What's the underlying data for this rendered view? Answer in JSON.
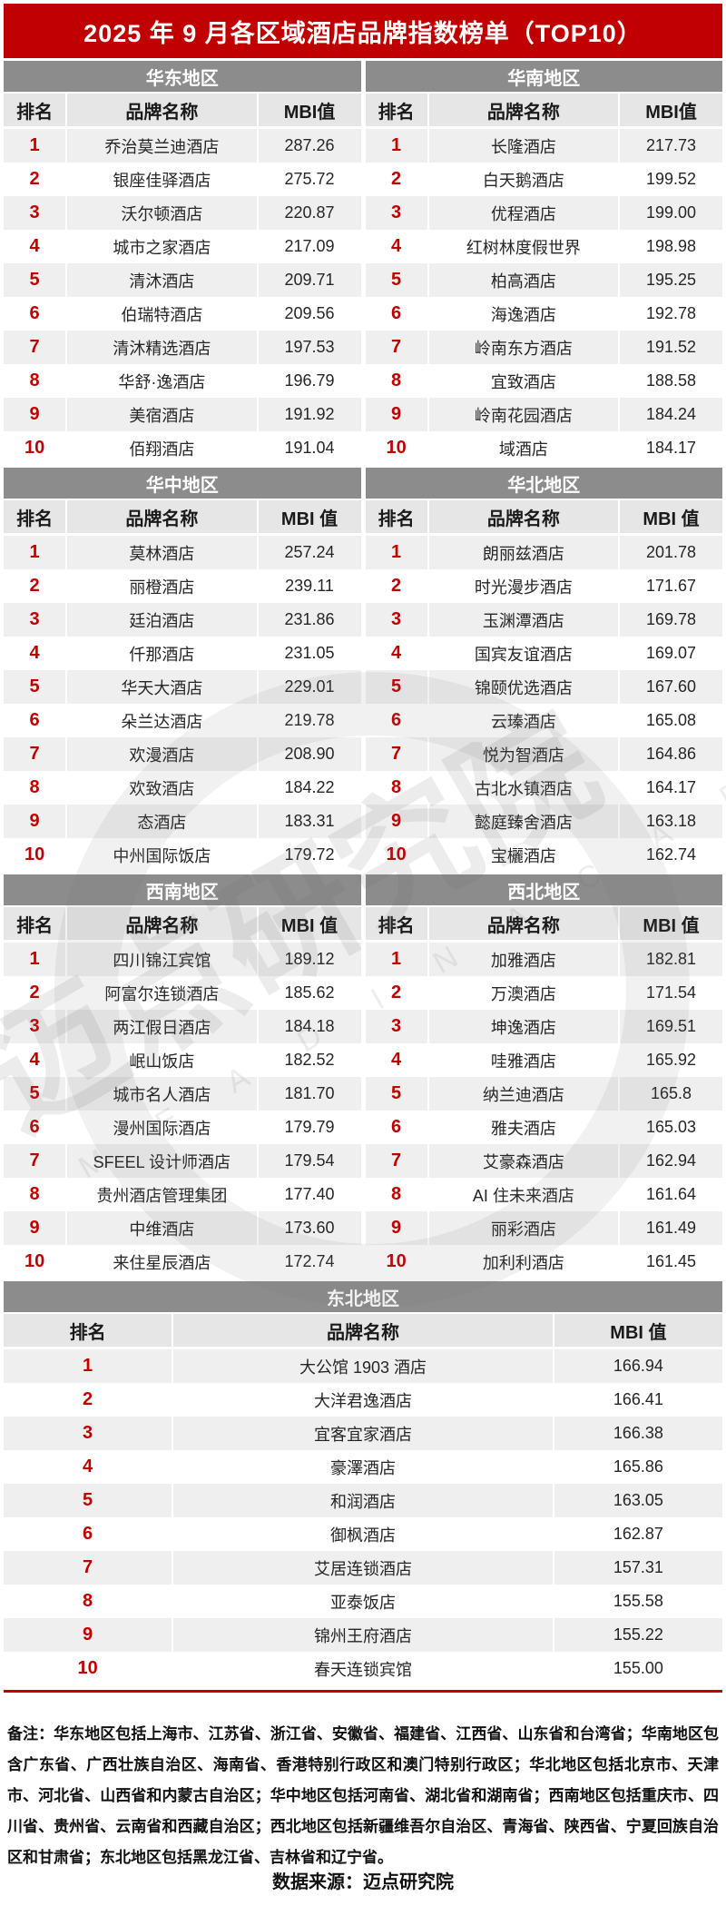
{
  "title": "2025 年 9 月各区域酒店品牌指数榜单（TOP10）",
  "chart_data": [
    {
      "type": "table",
      "region": "华东地区",
      "cols": [
        "排名",
        "品牌名称",
        "MBI值"
      ],
      "rows": [
        {
          "rank": "1",
          "brand": "乔治莫兰迪酒店",
          "mbi": "287.26"
        },
        {
          "rank": "2",
          "brand": "银座佳驿酒店",
          "mbi": "275.72"
        },
        {
          "rank": "3",
          "brand": "沃尔顿酒店",
          "mbi": "220.87"
        },
        {
          "rank": "4",
          "brand": "城市之家酒店",
          "mbi": "217.09"
        },
        {
          "rank": "5",
          "brand": "清沐酒店",
          "mbi": "209.71"
        },
        {
          "rank": "6",
          "brand": "伯瑞特酒店",
          "mbi": "209.56"
        },
        {
          "rank": "7",
          "brand": "清沐精选酒店",
          "mbi": "197.53"
        },
        {
          "rank": "8",
          "brand": "华舒·逸酒店",
          "mbi": "196.79"
        },
        {
          "rank": "9",
          "brand": "美宿酒店",
          "mbi": "191.92"
        },
        {
          "rank": "10",
          "brand": "佰翔酒店",
          "mbi": "191.04"
        }
      ]
    },
    {
      "type": "table",
      "region": "华南地区",
      "cols": [
        "排名",
        "品牌名称",
        "MBI值"
      ],
      "rows": [
        {
          "rank": "1",
          "brand": "长隆酒店",
          "mbi": "217.73"
        },
        {
          "rank": "2",
          "brand": "白天鹅酒店",
          "mbi": "199.52"
        },
        {
          "rank": "3",
          "brand": "优程酒店",
          "mbi": "199.00"
        },
        {
          "rank": "4",
          "brand": "红树林度假世界",
          "mbi": "198.98"
        },
        {
          "rank": "5",
          "brand": "柏高酒店",
          "mbi": "195.25"
        },
        {
          "rank": "6",
          "brand": "海逸酒店",
          "mbi": "192.78"
        },
        {
          "rank": "7",
          "brand": "岭南东方酒店",
          "mbi": "191.52"
        },
        {
          "rank": "8",
          "brand": "宜致酒店",
          "mbi": "188.58"
        },
        {
          "rank": "9",
          "brand": "岭南花园酒店",
          "mbi": "184.24"
        },
        {
          "rank": "10",
          "brand": "域酒店",
          "mbi": "184.17"
        }
      ]
    },
    {
      "type": "table",
      "region": "华中地区",
      "cols": [
        "排名",
        "品牌名称",
        "MBI 值"
      ],
      "rows": [
        {
          "rank": "1",
          "brand": "莫林酒店",
          "mbi": "257.24"
        },
        {
          "rank": "2",
          "brand": "丽橙酒店",
          "mbi": "239.11"
        },
        {
          "rank": "3",
          "brand": "廷泊酒店",
          "mbi": "231.86"
        },
        {
          "rank": "4",
          "brand": "仟那酒店",
          "mbi": "231.05"
        },
        {
          "rank": "5",
          "brand": "华天大酒店",
          "mbi": "229.01"
        },
        {
          "rank": "6",
          "brand": "朵兰达酒店",
          "mbi": "219.78"
        },
        {
          "rank": "7",
          "brand": "欢漫酒店",
          "mbi": "208.90"
        },
        {
          "rank": "8",
          "brand": "欢致酒店",
          "mbi": "184.22"
        },
        {
          "rank": "9",
          "brand": "态酒店",
          "mbi": "183.31"
        },
        {
          "rank": "10",
          "brand": "中州国际饭店",
          "mbi": "179.72"
        }
      ]
    },
    {
      "type": "table",
      "region": "华北地区",
      "cols": [
        "排名",
        "品牌名称",
        "MBI 值"
      ],
      "rows": [
        {
          "rank": "1",
          "brand": "朗丽兹酒店",
          "mbi": "201.78"
        },
        {
          "rank": "2",
          "brand": "时光漫步酒店",
          "mbi": "171.67"
        },
        {
          "rank": "3",
          "brand": "玉渊潭酒店",
          "mbi": "169.78"
        },
        {
          "rank": "4",
          "brand": "国宾友谊酒店",
          "mbi": "169.07"
        },
        {
          "rank": "5",
          "brand": "锦颐优选酒店",
          "mbi": "167.60"
        },
        {
          "rank": "6",
          "brand": "云瑧酒店",
          "mbi": "165.08"
        },
        {
          "rank": "7",
          "brand": "悦为智酒店",
          "mbi": "164.86"
        },
        {
          "rank": "8",
          "brand": "古北水镇酒店",
          "mbi": "164.17"
        },
        {
          "rank": "9",
          "brand": "懿庭臻舍酒店",
          "mbi": "163.18"
        },
        {
          "rank": "10",
          "brand": "宝欐酒店",
          "mbi": "162.74"
        }
      ]
    },
    {
      "type": "table",
      "region": "西南地区",
      "cols": [
        "排名",
        "品牌名称",
        "MBI 值"
      ],
      "rows": [
        {
          "rank": "1",
          "brand": "四川锦江宾馆",
          "mbi": "189.12"
        },
        {
          "rank": "2",
          "brand": "阿富尔连锁酒店",
          "mbi": "185.62"
        },
        {
          "rank": "3",
          "brand": "两江假日酒店",
          "mbi": "184.18"
        },
        {
          "rank": "4",
          "brand": "岷山饭店",
          "mbi": "182.52"
        },
        {
          "rank": "5",
          "brand": "城市名人酒店",
          "mbi": "181.70"
        },
        {
          "rank": "6",
          "brand": "漫州国际酒店",
          "mbi": "179.79"
        },
        {
          "rank": "7",
          "brand": "SFEEL 设计师酒店",
          "mbi": "179.54"
        },
        {
          "rank": "8",
          "brand": "贵州酒店管理集团",
          "mbi": "177.40"
        },
        {
          "rank": "9",
          "brand": "中维酒店",
          "mbi": "173.60"
        },
        {
          "rank": "10",
          "brand": "来住星辰酒店",
          "mbi": "172.74"
        }
      ]
    },
    {
      "type": "table",
      "region": "西北地区",
      "cols": [
        "排名",
        "品牌名称",
        "MBI 值"
      ],
      "rows": [
        {
          "rank": "1",
          "brand": "加雅酒店",
          "mbi": "182.81"
        },
        {
          "rank": "2",
          "brand": "万澳酒店",
          "mbi": "171.54"
        },
        {
          "rank": "3",
          "brand": "坤逸酒店",
          "mbi": "169.51"
        },
        {
          "rank": "4",
          "brand": "哇雅酒店",
          "mbi": "165.92"
        },
        {
          "rank": "5",
          "brand": "纳兰迪酒店",
          "mbi": "165.8"
        },
        {
          "rank": "6",
          "brand": "雅夫酒店",
          "mbi": "165.03"
        },
        {
          "rank": "7",
          "brand": "艾豪森酒店",
          "mbi": "162.94"
        },
        {
          "rank": "8",
          "brand": "AI 住未来酒店",
          "mbi": "161.64"
        },
        {
          "rank": "9",
          "brand": "丽彩酒店",
          "mbi": "161.49"
        },
        {
          "rank": "10",
          "brand": "加利利酒店",
          "mbi": "161.45"
        }
      ]
    },
    {
      "type": "table",
      "region": "东北地区",
      "cols": [
        "排名",
        "品牌名称",
        "MBI 值"
      ],
      "rows": [
        {
          "rank": "1",
          "brand": "大公馆 1903 酒店",
          "mbi": "166.94"
        },
        {
          "rank": "2",
          "brand": "大洋君逸酒店",
          "mbi": "166.41"
        },
        {
          "rank": "3",
          "brand": "宜客宜家酒店",
          "mbi": "166.38"
        },
        {
          "rank": "4",
          "brand": "豪澤酒店",
          "mbi": "165.86"
        },
        {
          "rank": "5",
          "brand": "和润酒店",
          "mbi": "163.05"
        },
        {
          "rank": "6",
          "brand": "御枫酒店",
          "mbi": "162.87"
        },
        {
          "rank": "7",
          "brand": "艾居连锁酒店",
          "mbi": "157.31"
        },
        {
          "rank": "8",
          "brand": "亚泰饭店",
          "mbi": "155.58"
        },
        {
          "rank": "9",
          "brand": "锦州王府酒店",
          "mbi": "155.22"
        },
        {
          "rank": "10",
          "brand": "春天连锁宾馆",
          "mbi": "155.00"
        }
      ]
    }
  ],
  "watermark": {
    "cn": "迈点研究院",
    "en": "M E A D I N  A C A D E M Y"
  },
  "footer": {
    "note": "备注：华东地区包括上海市、江苏省、浙江省、安徽省、福建省、江西省、山东省和台湾省；华南地区包含广东省、广西壮族自治区、海南省、香港特别行政区和澳门特别行政区；华北地区包括北京市、天津市、河北省、山西省和内蒙古自治区；华中地区包括河南省、湖北省和湖南省；西南地区包括重庆市、四川省、贵州省、云南省和西藏自治区；西北地区包括新疆维吾尔自治区、青海省、陕西省、宁夏回族自治区和甘肃省；东北地区包括黑龙江省、吉林省和辽宁省。",
    "source": "数据来源：迈点研究院"
  },
  "colors": {
    "accent_red": "#c00000",
    "region_header_gray": "#8c8c8c",
    "column_header_gray": "#e6e6e6",
    "stripe_gray": "#efefef"
  }
}
